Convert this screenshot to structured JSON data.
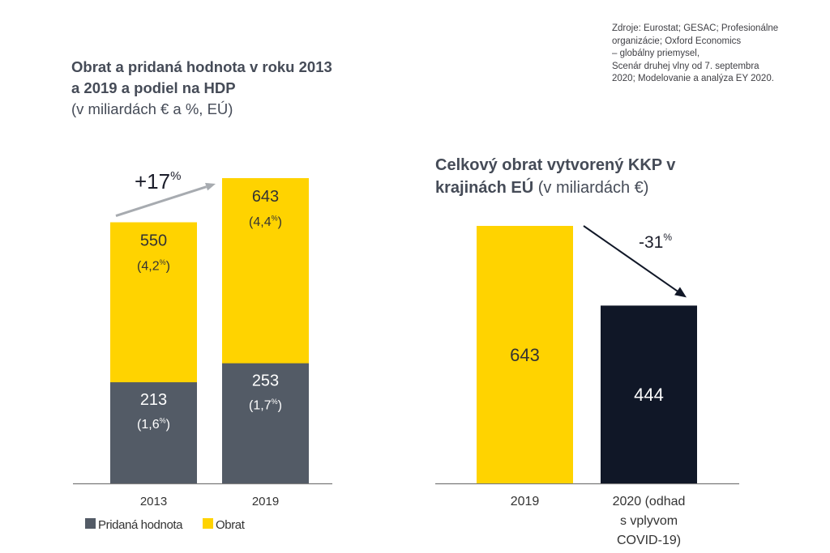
{
  "source_note": {
    "lines": [
      "Zdroje: Eurostat; GESAC; Profesionálne",
      "organizácie; Oxford Economics",
      "– globálny priemysel,",
      "Scenár druhej vlny od 7. septembra",
      "2020; Modelovanie a analýza EY 2020."
    ]
  },
  "chart_data": [
    {
      "type": "bar",
      "bar_mode": "overlay",
      "title_lines": [
        "Obrat a pridaná hodnota v roku 2013",
        "a 2019 a podiel na HDP"
      ],
      "subtitle": "(v miliardách € a %, EÚ)",
      "xlabel": "",
      "ylabel": "",
      "grid": false,
      "categories": [
        "2013",
        "2019"
      ],
      "series": [
        {
          "name": "Obrat",
          "values": [
            550,
            643
          ],
          "share_labels": [
            "(4,2%)",
            "(4,4%)"
          ],
          "color": "#FFD300",
          "label_color": "#333333"
        },
        {
          "name": "Pridaná hodnota",
          "values": [
            213,
            253
          ],
          "share_labels": [
            "(1,6%)",
            "(1,7%)"
          ],
          "color": "#535B66",
          "label_color": "#FFFFFF"
        }
      ],
      "legend": [
        {
          "label": "Pridaná hodnota",
          "color": "#535B66"
        },
        {
          "label": "Obrat",
          "color": "#FFD300"
        }
      ],
      "legend_position": "bottom-left",
      "annotation": {
        "text": "+17%",
        "from": "2013",
        "to": "2019",
        "arrow_color": "#A7ABB0",
        "text_color": "#1B1D2A"
      }
    },
    {
      "type": "bar",
      "title_line1": "Celkový obrat vytvorený KKP v",
      "title_line2_bold": "krajinách EÚ",
      "title_line2_unit": "(v miliardách €)",
      "xlabel": "",
      "ylabel": "",
      "grid": false,
      "categories": [
        "2019",
        "2020 (odhad s vplyvom COVID-19)"
      ],
      "category_label_lines": [
        [
          "2019"
        ],
        [
          "2020 (odhad",
          "s vplyvom",
          "COVID-19)"
        ]
      ],
      "values": [
        643,
        444
      ],
      "colors": [
        "#FFD300",
        "#101727"
      ],
      "label_colors": [
        "#333333",
        "#FFFFFF"
      ],
      "annotation": {
        "text": "-31%",
        "from": "2019",
        "to": "2020",
        "arrow_color": "#101727",
        "text_color": "#1B1D2A"
      }
    }
  ]
}
